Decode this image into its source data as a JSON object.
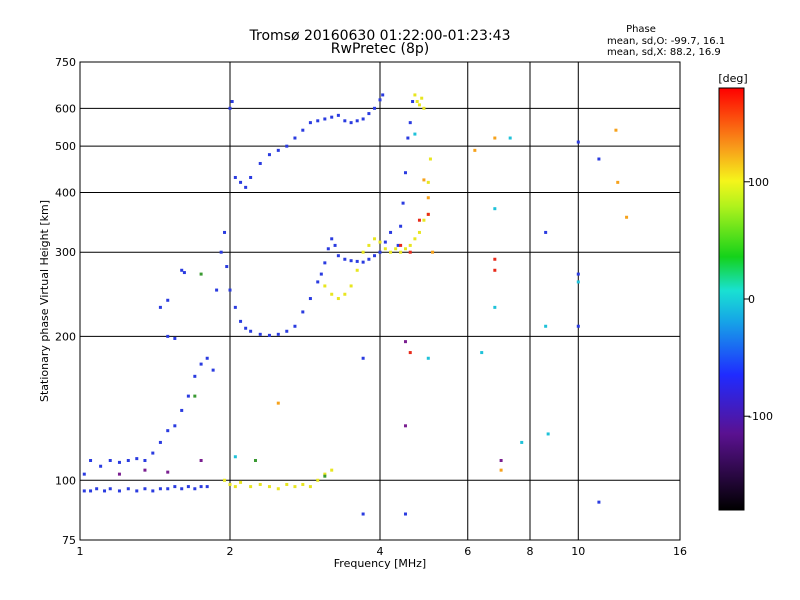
{
  "chart_data": {
    "type": "scatter",
    "title": "Tromsø 20160630 01:22:00-01:23:43",
    "subtitle": "RwPretec (8p)",
    "xlabel": "Frequency [MHz]",
    "ylabel": "Stationary phase Virtual Height [km]",
    "x_scale": "log",
    "y_scale": "log",
    "xlim": [
      1,
      16
    ],
    "ylim": [
      75,
      750
    ],
    "x_ticks": [
      1,
      2,
      4,
      6,
      8,
      10,
      16
    ],
    "y_ticks": [
      75,
      100,
      200,
      300,
      400,
      500,
      600,
      750
    ],
    "grid": true,
    "colorbar": {
      "label": "[deg]",
      "range": [
        -180,
        180
      ],
      "ticks": [
        100,
        0,
        -100
      ]
    },
    "stats": {
      "heading": "Phase",
      "line_o": "mean, sd,O: -99.7, 16.1",
      "line_x": "mean, sd,X:  88.2, 16.9"
    },
    "series": [
      {
        "color": "#2a3be0",
        "points": [
          [
            1.02,
            95
          ],
          [
            1.05,
            95
          ],
          [
            1.08,
            96
          ],
          [
            1.12,
            95
          ],
          [
            1.15,
            96
          ],
          [
            1.2,
            95
          ],
          [
            1.25,
            96
          ],
          [
            1.3,
            95
          ],
          [
            1.35,
            96
          ],
          [
            1.4,
            95
          ],
          [
            1.45,
            96
          ],
          [
            1.5,
            96
          ],
          [
            1.55,
            97
          ],
          [
            1.6,
            96
          ],
          [
            1.65,
            97
          ],
          [
            1.7,
            96
          ],
          [
            1.75,
            97
          ],
          [
            1.8,
            97
          ],
          [
            1.02,
            103
          ],
          [
            1.05,
            110
          ],
          [
            1.1,
            107
          ],
          [
            1.15,
            110
          ],
          [
            1.2,
            109
          ],
          [
            1.25,
            110
          ],
          [
            1.3,
            111
          ],
          [
            1.35,
            110
          ],
          [
            1.4,
            114
          ],
          [
            1.45,
            120
          ],
          [
            1.5,
            127
          ],
          [
            1.55,
            130
          ],
          [
            1.6,
            140
          ],
          [
            1.65,
            150
          ],
          [
            1.7,
            165
          ],
          [
            1.75,
            175
          ],
          [
            1.8,
            180
          ],
          [
            1.85,
            170
          ],
          [
            1.5,
            200
          ],
          [
            1.55,
            198
          ],
          [
            1.45,
            230
          ],
          [
            1.5,
            238
          ],
          [
            1.6,
            275
          ],
          [
            1.62,
            272
          ],
          [
            1.88,
            250
          ],
          [
            1.92,
            300
          ],
          [
            1.95,
            330
          ],
          [
            1.97,
            280
          ],
          [
            2.0,
            250
          ],
          [
            2.05,
            230
          ],
          [
            2.1,
            215
          ],
          [
            2.15,
            208
          ],
          [
            2.2,
            205
          ],
          [
            2.3,
            202
          ],
          [
            2.4,
            201
          ],
          [
            2.5,
            202
          ],
          [
            2.6,
            205
          ],
          [
            2.7,
            210
          ],
          [
            2.8,
            225
          ],
          [
            2.9,
            240
          ],
          [
            3.0,
            260
          ],
          [
            3.05,
            270
          ],
          [
            3.1,
            285
          ],
          [
            3.15,
            305
          ],
          [
            3.2,
            320
          ],
          [
            3.25,
            310
          ],
          [
            3.3,
            295
          ],
          [
            3.4,
            290
          ],
          [
            3.5,
            288
          ],
          [
            3.6,
            287
          ],
          [
            3.7,
            286
          ],
          [
            3.8,
            290
          ],
          [
            3.9,
            295
          ],
          [
            4.0,
            300
          ],
          [
            4.1,
            315
          ],
          [
            4.2,
            330
          ],
          [
            2.0,
            600
          ],
          [
            2.02,
            620
          ],
          [
            2.05,
            430
          ],
          [
            2.1,
            420
          ],
          [
            2.15,
            410
          ],
          [
            2.2,
            430
          ],
          [
            2.3,
            460
          ],
          [
            2.4,
            480
          ],
          [
            2.5,
            490
          ],
          [
            2.6,
            500
          ],
          [
            2.7,
            520
          ],
          [
            2.8,
            540
          ],
          [
            2.9,
            560
          ],
          [
            3.0,
            565
          ],
          [
            3.1,
            570
          ],
          [
            3.2,
            575
          ],
          [
            3.3,
            580
          ],
          [
            3.4,
            565
          ],
          [
            3.5,
            560
          ],
          [
            3.6,
            565
          ],
          [
            3.7,
            570
          ],
          [
            3.8,
            585
          ],
          [
            3.9,
            600
          ],
          [
            4.0,
            625
          ],
          [
            4.05,
            640
          ],
          [
            4.35,
            310
          ],
          [
            4.4,
            340
          ],
          [
            4.45,
            380
          ],
          [
            4.5,
            440
          ],
          [
            4.55,
            520
          ],
          [
            4.6,
            560
          ],
          [
            4.65,
            620
          ],
          [
            4.5,
            85
          ],
          [
            3.7,
            85
          ],
          [
            3.7,
            180
          ],
          [
            10.0,
            510
          ],
          [
            10.0,
            270
          ],
          [
            8.6,
            330
          ],
          [
            10.0,
            210
          ],
          [
            11.0,
            90
          ],
          [
            11.0,
            470
          ]
        ]
      },
      {
        "color": "#e8e620",
        "points": [
          [
            1.95,
            100
          ],
          [
            2.0,
            98
          ],
          [
            2.05,
            97
          ],
          [
            2.1,
            99
          ],
          [
            2.2,
            97
          ],
          [
            2.3,
            98
          ],
          [
            2.4,
            97
          ],
          [
            2.5,
            96
          ],
          [
            2.6,
            98
          ],
          [
            2.7,
            97
          ],
          [
            2.8,
            98
          ],
          [
            2.9,
            97
          ],
          [
            3.0,
            100
          ],
          [
            3.1,
            103
          ],
          [
            3.2,
            105
          ],
          [
            3.1,
            255
          ],
          [
            3.2,
            245
          ],
          [
            3.3,
            240
          ],
          [
            3.4,
            245
          ],
          [
            3.5,
            255
          ],
          [
            3.6,
            275
          ],
          [
            3.7,
            300
          ],
          [
            3.8,
            310
          ],
          [
            3.9,
            320
          ],
          [
            4.0,
            315
          ],
          [
            4.1,
            305
          ],
          [
            4.2,
            300
          ],
          [
            4.3,
            305
          ],
          [
            4.4,
            300
          ],
          [
            4.5,
            305
          ],
          [
            4.6,
            310
          ],
          [
            4.7,
            320
          ],
          [
            4.8,
            330
          ],
          [
            4.9,
            350
          ],
          [
            5.0,
            360
          ],
          [
            4.7,
            640
          ],
          [
            4.75,
            620
          ],
          [
            4.8,
            610
          ],
          [
            4.85,
            630
          ],
          [
            4.9,
            600
          ],
          [
            5.05,
            470
          ],
          [
            5.0,
            420
          ]
        ]
      },
      {
        "color": "#f6a21c",
        "points": [
          [
            5.1,
            300
          ],
          [
            5.0,
            390
          ],
          [
            4.9,
            425
          ],
          [
            6.2,
            490
          ],
          [
            6.8,
            520
          ],
          [
            11.9,
            540
          ],
          [
            12.0,
            420
          ],
          [
            12.5,
            355
          ],
          [
            7.0,
            105
          ],
          [
            2.5,
            145
          ]
        ]
      },
      {
        "color": "#1fc2d9",
        "points": [
          [
            2.05,
            112
          ],
          [
            6.4,
            185
          ],
          [
            6.8,
            370
          ],
          [
            6.8,
            230
          ],
          [
            7.3,
            520
          ],
          [
            8.6,
            210
          ],
          [
            8.7,
            125
          ],
          [
            7.7,
            120
          ],
          [
            4.7,
            530
          ],
          [
            5.0,
            180
          ],
          [
            10.0,
            260
          ]
        ]
      },
      {
        "color": "#e82a1a",
        "points": [
          [
            4.4,
            310
          ],
          [
            4.6,
            185
          ],
          [
            4.6,
            300
          ],
          [
            4.8,
            350
          ],
          [
            5.0,
            360
          ],
          [
            6.8,
            275
          ],
          [
            6.8,
            290
          ]
        ]
      },
      {
        "color": "#3a9a32",
        "points": [
          [
            1.75,
            270
          ],
          [
            1.7,
            150
          ],
          [
            3.1,
            102
          ],
          [
            2.25,
            110
          ]
        ]
      },
      {
        "color": "#7a1f90",
        "points": [
          [
            1.2,
            103
          ],
          [
            1.35,
            105
          ],
          [
            1.5,
            104
          ],
          [
            1.75,
            110
          ],
          [
            4.5,
            130
          ],
          [
            4.5,
            195
          ],
          [
            7.0,
            110
          ]
        ]
      }
    ]
  }
}
